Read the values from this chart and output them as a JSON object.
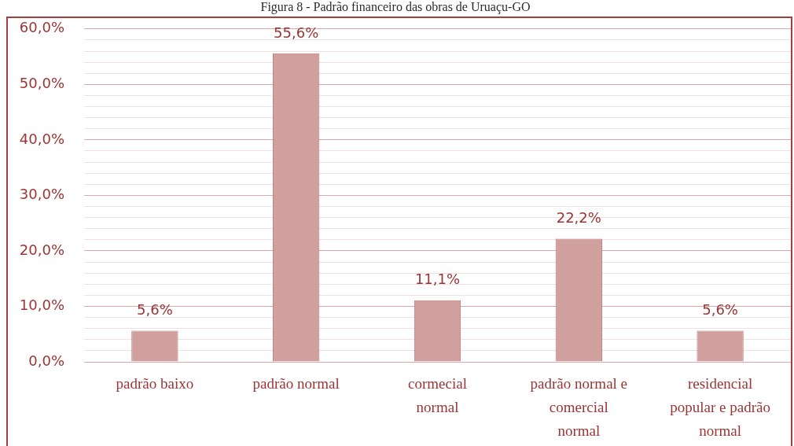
{
  "chart_data": {
    "type": "bar",
    "title": "Figura 8 - Padrão financeiro das obras de Uruaçu-GO",
    "categories": [
      "padrão baixo",
      "padrão normal",
      "cormecial normal",
      "padrão normal e comercial normal",
      "residencial popular e padrão normal"
    ],
    "values": [
      5.6,
      55.6,
      11.1,
      22.2,
      5.6
    ],
    "color": "#d0a09f",
    "value_labels": [
      "5,6%",
      "55,6%",
      "11,1%",
      "22,2%",
      "5,6%"
    ],
    "ylim": [
      0,
      60
    ],
    "yticks": [
      {
        "value": 0,
        "label": "0,0%"
      },
      {
        "value": 2,
        "label": null
      },
      {
        "value": 4,
        "label": null
      },
      {
        "value": 6,
        "label": null
      },
      {
        "value": 8,
        "label": null
      },
      {
        "value": 10,
        "label": "10,0%"
      },
      {
        "value": 12,
        "label": null
      },
      {
        "value": 14,
        "label": null
      },
      {
        "value": 16,
        "label": null
      },
      {
        "value": 18,
        "label": null
      },
      {
        "value": 20,
        "label": "20,0%"
      },
      {
        "value": 22,
        "label": null
      },
      {
        "value": 24,
        "label": null
      },
      {
        "value": 26,
        "label": null
      },
      {
        "value": 28,
        "label": null
      },
      {
        "value": 30,
        "label": "30,0%"
      },
      {
        "value": 32,
        "label": null
      },
      {
        "value": 34,
        "label": null
      },
      {
        "value": 36,
        "label": null
      },
      {
        "value": 38,
        "label": null
      },
      {
        "value": 40,
        "label": "40,0%"
      },
      {
        "value": 42,
        "label": null
      },
      {
        "value": 44,
        "label": null
      },
      {
        "value": 46,
        "label": null
      },
      {
        "value": 48,
        "label": null
      },
      {
        "value": 50,
        "label": "50,0%"
      },
      {
        "value": 52,
        "label": null
      },
      {
        "value": 54,
        "label": null
      },
      {
        "value": 56,
        "label": null
      },
      {
        "value": 58,
        "label": null
      },
      {
        "value": 60,
        "label": "60,0%"
      }
    ],
    "grid": "y"
  }
}
